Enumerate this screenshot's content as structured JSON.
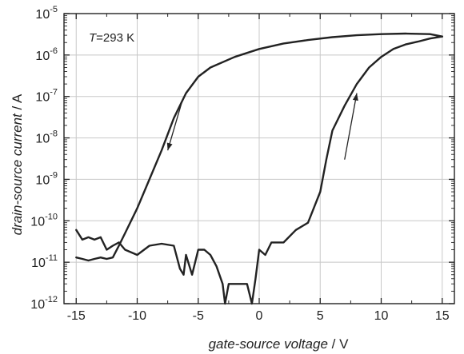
{
  "chart_data": {
    "type": "line",
    "title": "",
    "xlabel": "gate-source voltage",
    "xlabel_unit": "V",
    "ylabel": "drain-source current",
    "ylabel_unit": "A",
    "xlim": [
      -16,
      16
    ],
    "ylim": [
      1e-12,
      1e-05
    ],
    "y_scale": "log",
    "grid": true,
    "x_ticks": [
      -15,
      -10,
      -5,
      0,
      5,
      10,
      15
    ],
    "x_tick_labels": [
      "-15",
      "-10",
      "-5",
      "0",
      "5",
      "10",
      "15"
    ],
    "y_ticks": [
      1e-12,
      1e-11,
      1e-10,
      1e-09,
      1e-08,
      1e-07,
      1e-06,
      1e-05
    ],
    "y_tick_labels": [
      {
        "base": "10",
        "exp": "-12"
      },
      {
        "base": "10",
        "exp": "-11"
      },
      {
        "base": "10",
        "exp": "-10"
      },
      {
        "base": "10",
        "exp": "-9"
      },
      {
        "base": "10",
        "exp": "-8"
      },
      {
        "base": "10",
        "exp": "-7"
      },
      {
        "base": "10",
        "exp": "-6"
      },
      {
        "base": "10",
        "exp": "-5"
      }
    ],
    "annotation": {
      "var": "T",
      "text": "=293 K"
    },
    "series": [
      {
        "color": "#222222",
        "x": [
          15,
          14,
          12,
          10,
          8,
          6,
          4,
          2,
          0,
          -2,
          -4,
          -5,
          -6,
          -7,
          -8,
          -9,
          -10,
          -11,
          -11.5,
          -12,
          -12.5,
          -13,
          -13.5,
          -14,
          -14.5,
          -15
        ],
        "y": [
          2.8e-06,
          3.2e-06,
          3.3e-06,
          3.2e-06,
          3e-06,
          2.7e-06,
          2.3e-06,
          1.9e-06,
          1.4e-06,
          9e-07,
          5e-07,
          3e-07,
          1.2e-07,
          3e-08,
          5e-09,
          1e-09,
          2e-10,
          5e-11,
          2.5e-11,
          1.3e-11,
          1.2e-11,
          1.3e-11,
          1.2e-11,
          1.1e-11,
          1.2e-11,
          1.3e-11
        ]
      },
      {
        "color": "#222222",
        "x": [
          -15,
          -14.5,
          -14,
          -13.5,
          -13,
          -12.5,
          -12,
          -11.5,
          -11,
          -10,
          -9,
          -8,
          -7,
          -6.5,
          -6.2,
          -6,
          -5.5,
          -5,
          -4.5,
          -4,
          -3.5,
          -3,
          -2.8,
          -2.5,
          -1,
          -0.6,
          -0.3,
          0,
          0.5,
          1,
          2,
          3,
          4,
          5,
          5.5,
          6,
          7,
          8,
          9,
          10,
          11,
          12,
          13,
          14,
          15
        ],
        "y": [
          6e-11,
          3.5e-11,
          4e-11,
          3.5e-11,
          4e-11,
          2e-11,
          2.5e-11,
          3e-11,
          2e-11,
          1.5e-11,
          2.5e-11,
          2.8e-11,
          2.5e-11,
          7e-12,
          5e-12,
          1.5e-11,
          5e-12,
          2e-11,
          2e-11,
          1.5e-11,
          8e-12,
          3e-12,
          1e-12,
          3e-12,
          3e-12,
          1e-12,
          4e-12,
          2e-11,
          1.5e-11,
          3e-11,
          3e-11,
          6e-11,
          9e-11,
          5e-10,
          3e-09,
          1.5e-08,
          6e-08,
          2e-07,
          5e-07,
          9e-07,
          1.4e-06,
          1.8e-06,
          2.1e-06,
          2.5e-06,
          2.8e-06
        ]
      }
    ],
    "arrows": [
      {
        "from": [
          -6.3,
          8e-08
        ],
        "to": [
          -7.5,
          5e-09
        ]
      },
      {
        "from": [
          7.0,
          3e-09
        ],
        "to": [
          8.0,
          1.2e-07
        ]
      }
    ]
  }
}
